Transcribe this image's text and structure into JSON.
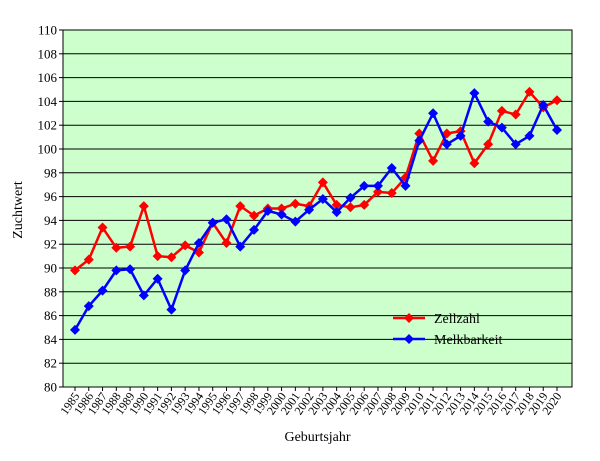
{
  "chart_data": {
    "type": "line",
    "title": "",
    "xlabel": "Geburtsjahr",
    "ylabel": "Zuchtwert",
    "x": [
      "1985",
      "1986",
      "1987",
      "1988",
      "1989",
      "1990",
      "1991",
      "1992",
      "1993",
      "1994",
      "1995",
      "1996",
      "1997",
      "1998",
      "1999",
      "2000",
      "2001",
      "2002",
      "2003",
      "2004",
      "2005",
      "2006",
      "2007",
      "2008",
      "2009",
      "2010",
      "2011",
      "2012",
      "2013",
      "2014",
      "2015",
      "2016",
      "2017",
      "2018",
      "2019",
      "2020"
    ],
    "ylim": [
      80,
      110
    ],
    "yticks": [
      80,
      82,
      84,
      86,
      88,
      90,
      92,
      94,
      96,
      98,
      100,
      102,
      104,
      106,
      108,
      110
    ],
    "grid": "horizontal",
    "legend_position": "bottom-right",
    "plot_background": "#ccffcc",
    "series": [
      {
        "name": "Zellzahl",
        "color": "#ff0000",
        "marker": "diamond",
        "values": [
          89.8,
          90.7,
          93.4,
          91.7,
          91.8,
          95.2,
          91.0,
          90.9,
          91.9,
          91.3,
          93.8,
          92.1,
          95.2,
          94.4,
          95.0,
          95.0,
          95.4,
          95.2,
          97.2,
          95.3,
          95.1,
          95.3,
          96.4,
          96.3,
          97.6,
          101.3,
          99.0,
          101.3,
          101.5,
          98.8,
          100.4,
          103.2,
          102.9,
          104.8,
          103.5,
          104.1
        ]
      },
      {
        "name": "Melkbarkeit",
        "color": "#0000ff",
        "marker": "diamond",
        "values": [
          84.8,
          86.8,
          88.1,
          89.8,
          89.9,
          87.7,
          89.1,
          86.5,
          89.8,
          92.1,
          93.8,
          94.1,
          91.8,
          93.2,
          94.8,
          94.5,
          93.9,
          94.9,
          95.8,
          94.7,
          95.9,
          96.9,
          96.9,
          98.4,
          96.9,
          100.7,
          103.0,
          100.4,
          101.1,
          104.7,
          102.3,
          101.8,
          100.4,
          101.1,
          103.7,
          101.6
        ]
      }
    ]
  }
}
